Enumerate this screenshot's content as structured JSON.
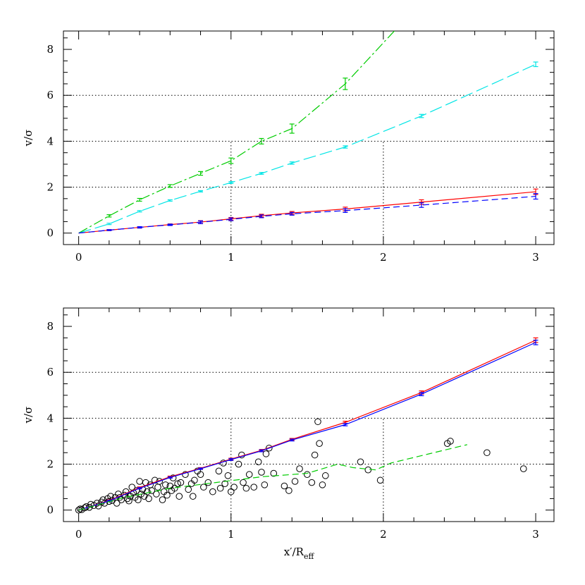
{
  "chart_data": [
    {
      "type": "line",
      "panel": "top",
      "ylabel": "v/σ",
      "xlabel": "",
      "xlim": [
        -0.1,
        3.12
      ],
      "ylim": [
        -0.5,
        8.8
      ],
      "xticks": [
        0,
        1,
        2,
        3
      ],
      "yticks": [
        0,
        2,
        4,
        6,
        8
      ],
      "hgrid": [
        2,
        4,
        6
      ],
      "vgrid": [
        {
          "x": 1,
          "y_top": 4
        },
        {
          "x": 2,
          "y_top": 4
        }
      ],
      "grid_style": "dotted",
      "series": [
        {
          "color": "#00cc00",
          "dash": "dash-dot",
          "x": [
            0,
            0.2,
            0.4,
            0.6,
            0.8,
            1.0,
            1.2,
            1.4,
            1.75,
            2.1
          ],
          "y": [
            0,
            0.75,
            1.45,
            2.05,
            2.6,
            3.15,
            4.0,
            4.55,
            6.5,
            9.0
          ],
          "err": [
            0,
            0.05,
            0.06,
            0.06,
            0.08,
            0.12,
            0.12,
            0.2,
            0.25,
            0
          ]
        },
        {
          "color": "#00e5e5",
          "dash": "long-dash",
          "x": [
            0,
            0.2,
            0.4,
            0.6,
            0.8,
            1.0,
            1.2,
            1.4,
            1.75,
            2.25,
            3.0
          ],
          "y": [
            0,
            0.4,
            0.95,
            1.42,
            1.82,
            2.2,
            2.6,
            3.05,
            3.75,
            5.1,
            7.35
          ],
          "err": [
            0,
            0.03,
            0.03,
            0.03,
            0.03,
            0.04,
            0.04,
            0.05,
            0.05,
            0.07,
            0.1
          ]
        },
        {
          "color": "#ff0000",
          "dash": "solid",
          "x": [
            0,
            0.2,
            0.4,
            0.6,
            0.8,
            1.0,
            1.2,
            1.4,
            1.75,
            2.25,
            3.0
          ],
          "y": [
            0,
            0.13,
            0.25,
            0.37,
            0.48,
            0.62,
            0.76,
            0.88,
            1.05,
            1.35,
            1.8
          ],
          "err": [
            0,
            0.02,
            0.03,
            0.03,
            0.06,
            0.06,
            0.06,
            0.06,
            0.08,
            0.1,
            0.12
          ]
        },
        {
          "color": "#0000ff",
          "dash": "dashed",
          "x": [
            0,
            0.2,
            0.4,
            0.6,
            0.8,
            1.0,
            1.2,
            1.4,
            1.75,
            2.25,
            3.0
          ],
          "y": [
            0,
            0.13,
            0.25,
            0.36,
            0.47,
            0.6,
            0.73,
            0.84,
            0.98,
            1.22,
            1.6
          ],
          "err": [
            0,
            0.02,
            0.03,
            0.03,
            0.06,
            0.06,
            0.06,
            0.06,
            0.08,
            0.1,
            0.12
          ]
        }
      ]
    },
    {
      "type": "line",
      "panel": "bottom",
      "ylabel": "v/σ",
      "xlabel": "x′/Reff",
      "xlabel_main": "x′/R",
      "xlabel_sub": "eff",
      "xlim": [
        -0.1,
        3.12
      ],
      "ylim": [
        -0.5,
        8.8
      ],
      "xticks": [
        0,
        1,
        2,
        3
      ],
      "yticks": [
        0,
        2,
        4,
        6,
        8
      ],
      "hgrid": [
        2,
        4,
        6
      ],
      "vgrid": [
        {
          "x": 1,
          "y_top": 4
        },
        {
          "x": 2,
          "y_top": 4
        }
      ],
      "grid_style": "dotted",
      "series": [
        {
          "color": "#ff0000",
          "dash": "solid",
          "x": [
            0,
            0.2,
            0.4,
            0.6,
            0.8,
            1.0,
            1.2,
            1.4,
            1.75,
            2.25,
            3.0
          ],
          "y": [
            0,
            0.42,
            0.98,
            1.45,
            1.82,
            2.22,
            2.6,
            3.08,
            3.82,
            5.12,
            7.4
          ],
          "err": [
            0,
            0.03,
            0.03,
            0.03,
            0.03,
            0.04,
            0.04,
            0.04,
            0.05,
            0.07,
            0.1
          ]
        },
        {
          "color": "#0000ff",
          "dash": "solid",
          "x": [
            0,
            0.2,
            0.4,
            0.6,
            0.8,
            1.0,
            1.2,
            1.4,
            1.75,
            2.25,
            3.0
          ],
          "y": [
            0,
            0.4,
            0.95,
            1.42,
            1.8,
            2.2,
            2.58,
            3.05,
            3.72,
            5.05,
            7.3
          ],
          "err": [
            0,
            0.03,
            0.03,
            0.03,
            0.03,
            0.04,
            0.04,
            0.04,
            0.05,
            0.07,
            0.1
          ]
        },
        {
          "color": "#00cc00",
          "dash": "dashed",
          "x": [
            0,
            0.3,
            0.6,
            0.9,
            1.2,
            1.5,
            1.7,
            1.8,
            1.95,
            2.05,
            2.3,
            2.55
          ],
          "y": [
            0,
            0.55,
            0.95,
            1.2,
            1.45,
            1.6,
            2.0,
            1.85,
            1.75,
            2.05,
            2.45,
            2.85
          ],
          "err": []
        }
      ],
      "scatter": {
        "marker": "open-circle",
        "color": "#000000",
        "points": [
          [
            0.0,
            0.0
          ],
          [
            0.01,
            0.05
          ],
          [
            0.02,
            0.02
          ],
          [
            0.04,
            0.1
          ],
          [
            0.05,
            0.15
          ],
          [
            0.07,
            0.12
          ],
          [
            0.08,
            0.25
          ],
          [
            0.1,
            0.2
          ],
          [
            0.12,
            0.3
          ],
          [
            0.13,
            0.18
          ],
          [
            0.15,
            0.35
          ],
          [
            0.16,
            0.45
          ],
          [
            0.17,
            0.3
          ],
          [
            0.19,
            0.5
          ],
          [
            0.2,
            0.38
          ],
          [
            0.21,
            0.6
          ],
          [
            0.22,
            0.42
          ],
          [
            0.24,
            0.55
          ],
          [
            0.25,
            0.3
          ],
          [
            0.26,
            0.7
          ],
          [
            0.27,
            0.55
          ],
          [
            0.28,
            0.45
          ],
          [
            0.3,
            0.65
          ],
          [
            0.31,
            0.8
          ],
          [
            0.32,
            0.5
          ],
          [
            0.33,
            0.4
          ],
          [
            0.34,
            0.6
          ],
          [
            0.35,
            1.0
          ],
          [
            0.36,
            0.75
          ],
          [
            0.37,
            0.55
          ],
          [
            0.38,
            0.85
          ],
          [
            0.39,
            0.45
          ],
          [
            0.4,
            1.25
          ],
          [
            0.41,
            0.7
          ],
          [
            0.42,
            0.9
          ],
          [
            0.43,
            0.6
          ],
          [
            0.44,
            1.2
          ],
          [
            0.45,
            0.8
          ],
          [
            0.46,
            0.5
          ],
          [
            0.47,
            1.1
          ],
          [
            0.48,
            0.85
          ],
          [
            0.5,
            1.3
          ],
          [
            0.51,
            0.7
          ],
          [
            0.52,
            1.0
          ],
          [
            0.53,
            1.25
          ],
          [
            0.55,
            0.45
          ],
          [
            0.56,
            0.8
          ],
          [
            0.57,
            1.1
          ],
          [
            0.58,
            0.65
          ],
          [
            0.6,
            1.05
          ],
          [
            0.61,
            0.85
          ],
          [
            0.62,
            1.4
          ],
          [
            0.63,
            0.95
          ],
          [
            0.65,
            1.15
          ],
          [
            0.66,
            0.6
          ],
          [
            0.67,
            1.2
          ],
          [
            0.7,
            1.55
          ],
          [
            0.72,
            0.9
          ],
          [
            0.74,
            1.15
          ],
          [
            0.75,
            0.6
          ],
          [
            0.76,
            1.3
          ],
          [
            0.78,
            1.7
          ],
          [
            0.8,
            1.55
          ],
          [
            0.82,
            1.0
          ],
          [
            0.85,
            1.2
          ],
          [
            0.88,
            0.8
          ],
          [
            0.92,
            1.7
          ],
          [
            0.93,
            0.95
          ],
          [
            0.95,
            2.05
          ],
          [
            0.96,
            1.15
          ],
          [
            0.98,
            1.5
          ],
          [
            1.0,
            0.8
          ],
          [
            1.02,
            1.0
          ],
          [
            1.05,
            2.0
          ],
          [
            1.07,
            2.4
          ],
          [
            1.08,
            1.2
          ],
          [
            1.1,
            0.95
          ],
          [
            1.12,
            1.55
          ],
          [
            1.15,
            1.0
          ],
          [
            1.18,
            2.1
          ],
          [
            1.2,
            1.65
          ],
          [
            1.22,
            1.1
          ],
          [
            1.23,
            2.45
          ],
          [
            1.25,
            2.7
          ],
          [
            1.28,
            1.6
          ],
          [
            1.35,
            1.05
          ],
          [
            1.38,
            0.85
          ],
          [
            1.42,
            1.25
          ],
          [
            1.45,
            1.8
          ],
          [
            1.5,
            1.55
          ],
          [
            1.53,
            1.2
          ],
          [
            1.55,
            2.4
          ],
          [
            1.57,
            3.85
          ],
          [
            1.58,
            2.9
          ],
          [
            1.6,
            1.1
          ],
          [
            1.62,
            1.5
          ],
          [
            1.85,
            2.1
          ],
          [
            1.9,
            1.75
          ],
          [
            1.98,
            1.3
          ],
          [
            2.42,
            2.9
          ],
          [
            2.44,
            3.0
          ],
          [
            2.68,
            2.5
          ],
          [
            2.92,
            1.8
          ]
        ]
      }
    }
  ]
}
